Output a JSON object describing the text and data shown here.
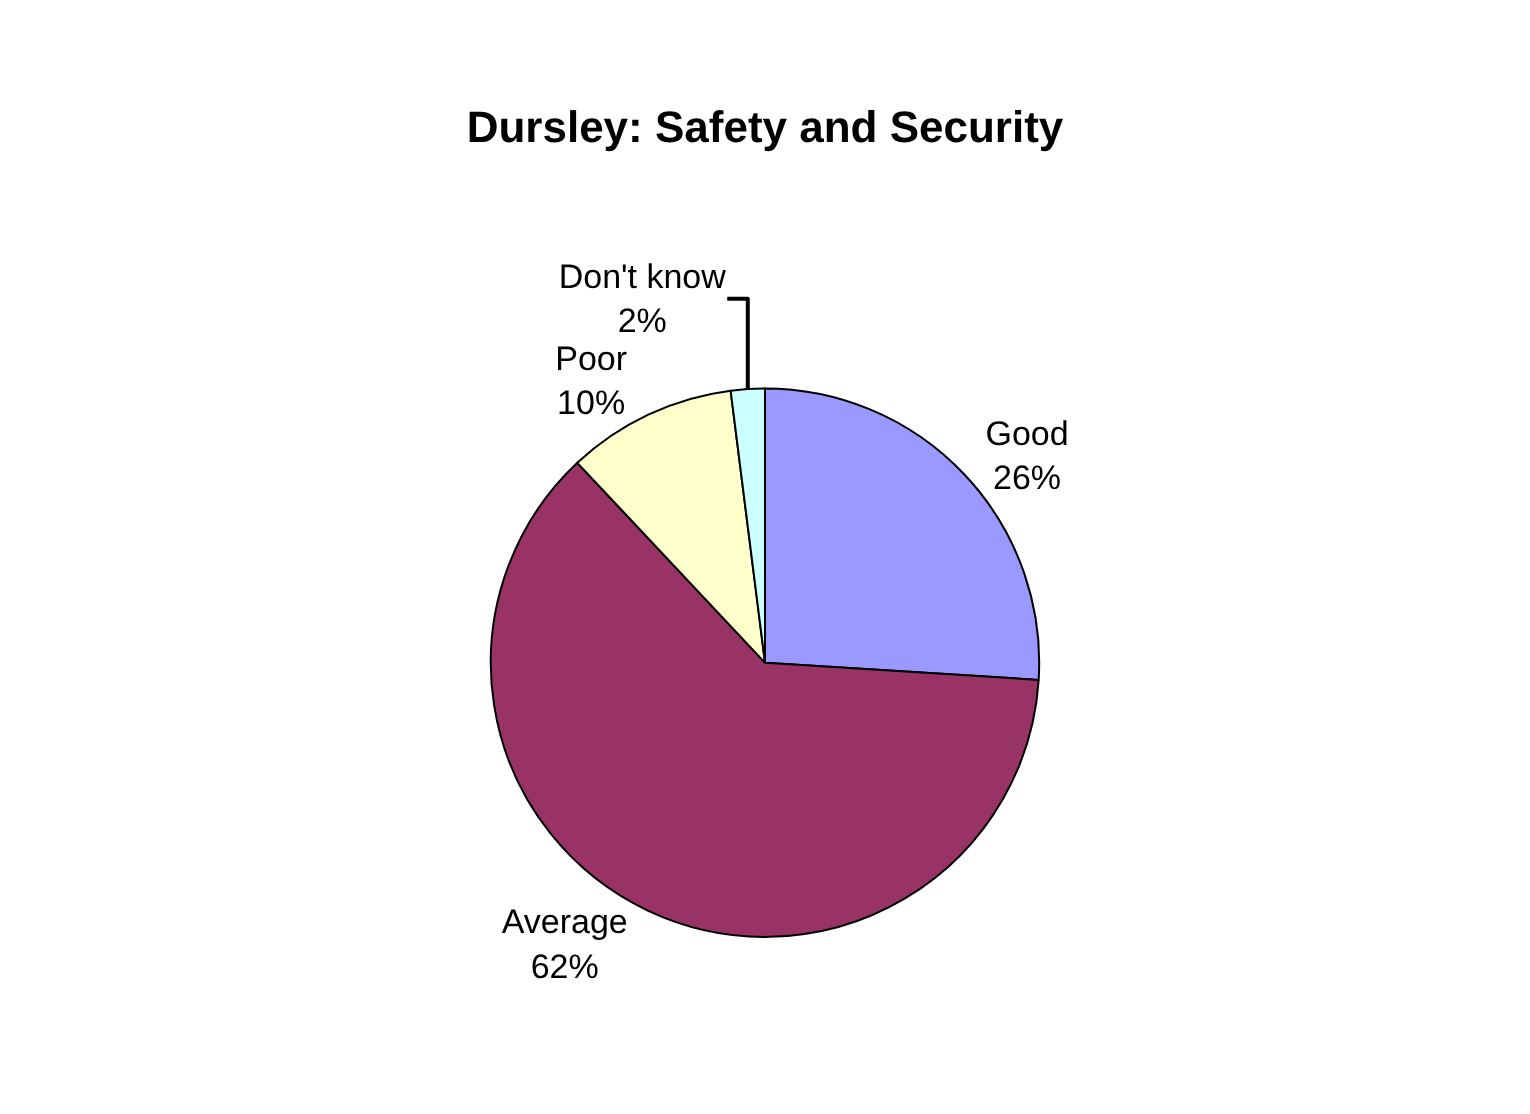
{
  "chart_data": {
    "type": "pie",
    "title": "Dursley: Safety and Security",
    "categories": [
      "Good",
      "Average",
      "Poor",
      "Don't know"
    ],
    "values": [
      26,
      62,
      10,
      2
    ],
    "value_labels": [
      "26%",
      "62%",
      "10%",
      "2%"
    ],
    "colors": [
      "#9999ff",
      "#993366",
      "#ffffcc",
      "#ccffff"
    ],
    "legend": false
  }
}
